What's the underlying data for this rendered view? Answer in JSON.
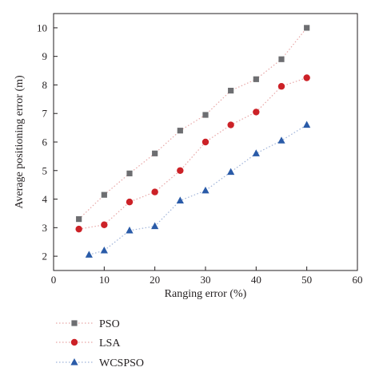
{
  "chart_data": {
    "type": "scatter",
    "title": "",
    "xlabel": "Ranging error (%)",
    "ylabel": "Average positioning error (m)",
    "xlim": [
      0,
      60
    ],
    "ylim": [
      1.5,
      10.5
    ],
    "xticks": [
      0,
      10,
      20,
      30,
      40,
      50,
      60
    ],
    "yticks": [
      2,
      3,
      4,
      5,
      6,
      7,
      8,
      9,
      10
    ],
    "grid": false,
    "legend_position": "bottom-left",
    "series": [
      {
        "name": "PSO",
        "marker": "square",
        "color": "#6d6e71",
        "line_color": "#e8a6a6",
        "x": [
          5,
          10,
          15,
          20,
          25,
          30,
          35,
          40,
          45,
          50
        ],
        "y": [
          3.3,
          4.15,
          4.9,
          5.6,
          6.4,
          6.95,
          7.8,
          8.2,
          8.9,
          10.0
        ]
      },
      {
        "name": "LSA",
        "marker": "circle",
        "color": "#cc2127",
        "line_color": "#e8a6a6",
        "x": [
          5,
          10,
          15,
          20,
          25,
          30,
          35,
          40,
          45,
          50
        ],
        "y": [
          2.95,
          3.1,
          3.9,
          4.25,
          5.0,
          6.0,
          6.6,
          7.05,
          7.95,
          8.25
        ]
      },
      {
        "name": "WCSPSO",
        "marker": "triangle",
        "color": "#2a5ba8",
        "line_color": "#9fb3d9",
        "x": [
          7,
          10,
          15,
          20,
          25,
          30,
          35,
          40,
          45,
          50
        ],
        "y": [
          2.05,
          2.2,
          2.9,
          3.05,
          3.95,
          4.3,
          4.95,
          5.6,
          6.05,
          6.6
        ]
      }
    ]
  }
}
